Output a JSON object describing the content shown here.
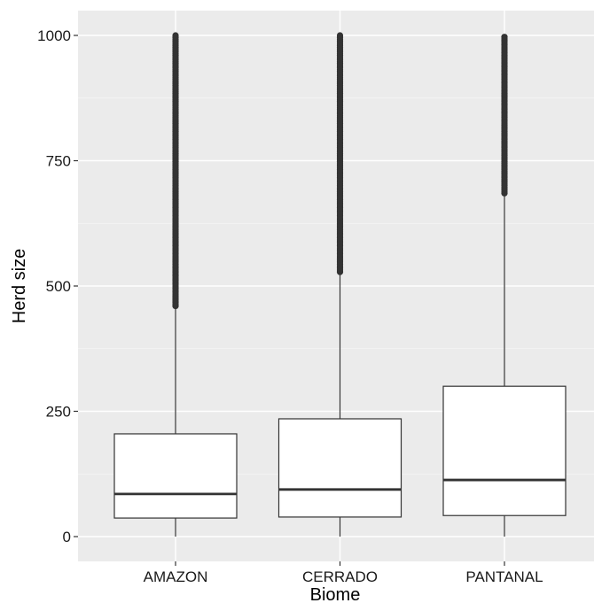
{
  "chart_data": {
    "type": "boxplot",
    "title": "",
    "xlabel": "Biome",
    "ylabel": "Herd size",
    "categories": [
      "AMAZON",
      "CERRADO",
      "PANTANAL"
    ],
    "ylim": [
      -50,
      1050
    ],
    "yticks": [
      0,
      250,
      500,
      750,
      1000
    ],
    "ytick_labels": [
      "0",
      "250",
      "500",
      "750",
      "1000"
    ],
    "grid": true,
    "legend": "none",
    "boxes": [
      {
        "category": "AMAZON",
        "whisker_low": 0,
        "q1": 37,
        "median": 85,
        "q3": 205,
        "whisker_high": 460,
        "outliers_from": 460,
        "outliers_to": 1000
      },
      {
        "category": "CERRADO",
        "whisker_low": 0,
        "q1": 39,
        "median": 94,
        "q3": 235,
        "whisker_high": 528,
        "outliers_from": 528,
        "outliers_to": 1000
      },
      {
        "category": "PANTANAL",
        "whisker_low": 0,
        "q1": 42,
        "median": 113,
        "q3": 300,
        "whisker_high": 685,
        "outliers_from": 685,
        "outliers_to": 1000
      }
    ],
    "colors": {
      "panel": "#ebebeb",
      "grid_major": "#ffffff",
      "box_fill": "#ffffff",
      "box_line": "#333333",
      "outlier": "#333333"
    }
  }
}
